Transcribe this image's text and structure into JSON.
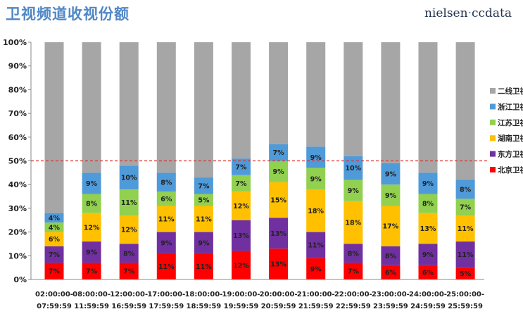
{
  "header": {
    "title": "卫视频道收视份额",
    "brand_a": "nielsen",
    "brand_dot": "·",
    "brand_b": "ccdata"
  },
  "chart_data": {
    "type": "bar",
    "stacked": true,
    "title": "卫视频道收视份额",
    "ylim": [
      0,
      100
    ],
    "yticks": [
      "0%",
      "10%",
      "20%",
      "30%",
      "40%",
      "50%",
      "60%",
      "70%",
      "80%",
      "90%",
      "100%"
    ],
    "categories": [
      [
        "02:00:00-",
        "07:59:59"
      ],
      [
        "08:00:00-",
        "11:59:59"
      ],
      [
        "12:00:00-",
        "16:59:59"
      ],
      [
        "17:00:00-",
        "17:59:59"
      ],
      [
        "18:00:00-",
        "18:59:59"
      ],
      [
        "19:00:00-",
        "19:59:59"
      ],
      [
        "20:00:00-",
        "20:59:59"
      ],
      [
        "21:00:00-",
        "21:59:59"
      ],
      [
        "22:00:00-",
        "22:59:59"
      ],
      [
        "23:00:00-",
        "23:59:59"
      ],
      [
        "24:00:00-",
        "24:59:59"
      ],
      [
        "25:00:00-",
        "25:59:59"
      ]
    ],
    "reference_line": 50,
    "legend_position": "right",
    "series": [
      {
        "name": "北京卫视",
        "color": "#ff0000",
        "values": [
          7,
          7,
          7,
          11,
          11,
          12,
          13,
          9,
          7,
          6,
          6,
          5
        ],
        "labels": [
          "7%",
          "7%",
          "7%",
          "11%",
          "11%",
          "12%",
          "13%",
          "9%",
          "7%",
          "6%",
          "6%",
          "5%"
        ]
      },
      {
        "name": "东方卫视",
        "color": "#7030a0",
        "values": [
          7,
          9,
          8,
          9,
          9,
          13,
          13,
          11,
          8,
          8,
          9,
          11
        ],
        "labels": [
          "7%",
          "9%",
          "8%",
          "9%",
          "9%",
          "13%",
          "13%",
          "11%",
          "8%",
          "8%",
          "9%",
          "11%"
        ]
      },
      {
        "name": "湖南卫视",
        "color": "#ffc000",
        "values": [
          6,
          12,
          12,
          11,
          11,
          12,
          15,
          18,
          18,
          17,
          13,
          11
        ],
        "labels": [
          "6%",
          "12%",
          "12%",
          "11%",
          "11%",
          "12%",
          "15%",
          "18%",
          "18%",
          "17%",
          "13%",
          "11%"
        ]
      },
      {
        "name": "江苏卫视",
        "color": "#92d050",
        "values": [
          4,
          8,
          11,
          6,
          5,
          7,
          9,
          9,
          9,
          9,
          8,
          7
        ],
        "labels": [
          "4%",
          "8%",
          "11%",
          "6%",
          "5%",
          "7%",
          "9%",
          "9%",
          "9%",
          "9%",
          "8%",
          "7%"
        ]
      },
      {
        "name": "浙江卫视",
        "color": "#4f9ad9",
        "values": [
          4,
          9,
          10,
          8,
          7,
          7,
          7,
          9,
          10,
          9,
          9,
          8
        ],
        "labels": [
          "4%",
          "9%",
          "10%",
          "8%",
          "7%",
          "7%",
          "7%",
          "9%",
          "10%",
          "9%",
          "9%",
          "8%"
        ]
      },
      {
        "name": "二线卫视",
        "color": "#a6a6a6",
        "values": [
          72,
          55,
          52,
          55,
          57,
          49,
          43,
          44,
          48,
          51,
          55,
          58
        ],
        "labels": []
      }
    ]
  }
}
